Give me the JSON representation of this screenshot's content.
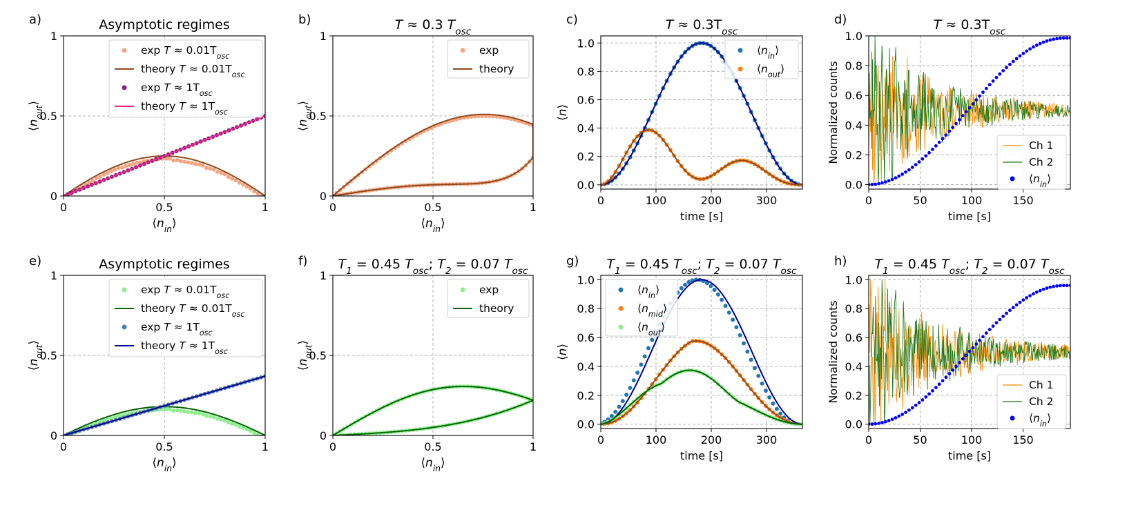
{
  "chart_data": [
    {
      "id": "a",
      "letter": "a)",
      "type": "scatter",
      "title": "Asymptotic regimes",
      "xlabel": "⟨n_in⟩",
      "ylabel": "⟨n_out⟩",
      "xlim": [
        0,
        1
      ],
      "ylim": [
        0,
        1
      ],
      "xticks": [
        0,
        0.5,
        1
      ],
      "xtick_labels": [
        "0",
        "0.5",
        "1"
      ],
      "yticks": [
        0,
        0.5,
        1
      ],
      "ytick_labels": [
        "0",
        "0.5",
        "1"
      ],
      "grid": true,
      "legend_position": "top-right",
      "series": [
        {
          "name": "exp T ≈ 0.01T_osc",
          "kind": "dots",
          "color": "#f4a582",
          "gen": "hump-exp",
          "peak": 0.25
        },
        {
          "name": "theory T ≈ 0.01T_osc",
          "kind": "line",
          "color": "#8c4a1e",
          "gen": "hump",
          "peak": 0.25
        },
        {
          "name": "exp T ≈ 1T_osc",
          "kind": "dots",
          "color": "#8e1e7a",
          "gen": "linear",
          "slope": 0.5
        },
        {
          "name": "theory T ≈ 1T_osc",
          "kind": "line",
          "color": "#e7298a",
          "gen": "linear",
          "slope": 0.5
        }
      ]
    },
    {
      "id": "b",
      "letter": "b)",
      "type": "scatter",
      "title": "T ≈ 0.3 T_osc",
      "xlabel": "⟨n_in⟩",
      "ylabel": "⟨n_out⟩",
      "xlim": [
        0,
        1
      ],
      "ylim": [
        0,
        1
      ],
      "xticks": [
        0,
        0.5,
        1
      ],
      "xtick_labels": [
        "0",
        "0.5",
        "1"
      ],
      "yticks": [
        0,
        0.5,
        1
      ],
      "ytick_labels": [
        "0",
        "0.5",
        "1"
      ],
      "grid": true,
      "legend_position": "top-right",
      "series": [
        {
          "name": "exp",
          "kind": "dots",
          "color": "#f4a582",
          "gen": "loop",
          "upper": 0.5,
          "lower": 0.07
        },
        {
          "name": "theory",
          "kind": "line",
          "color": "#8c4a1e",
          "gen": "loop",
          "upper": 0.51,
          "lower": 0.07
        }
      ]
    },
    {
      "id": "c",
      "letter": "c)",
      "type": "line",
      "title": "T ≈ 0.3T_osc",
      "xlabel": "time [s]",
      "ylabel": "⟨n⟩",
      "xlim": [
        0,
        365
      ],
      "ylim": [
        -0.03,
        1.05
      ],
      "xticks": [
        0,
        100,
        200,
        300
      ],
      "xtick_labels": [
        "0",
        "100",
        "200",
        "300"
      ],
      "yticks": [
        0,
        0.2,
        0.4,
        0.6,
        0.8,
        1.0
      ],
      "ytick_labels": [
        "0.0",
        "0.2",
        "0.4",
        "0.6",
        "0.8",
        "1.0"
      ],
      "grid": true,
      "legend_position": "top-right",
      "series": [
        {
          "name": "⟨n_in⟩",
          "kind": "dots",
          "color": "#1f77b4",
          "gen": "nin",
          "T": 365
        },
        {
          "name": "⟨n_out⟩",
          "kind": "dots",
          "color": "#ff7f0e",
          "gen": "nout1",
          "T": 365
        },
        {
          "name": "",
          "kind": "line",
          "color": "#00008b",
          "gen": "nin",
          "T": 365
        },
        {
          "name": "",
          "kind": "line",
          "color": "#8c4a1e",
          "gen": "nout1",
          "T": 365
        }
      ]
    },
    {
      "id": "d",
      "letter": "d)",
      "type": "line",
      "title": "T ≈ 0.3T_osc",
      "xlabel": "time [s]",
      "ylabel": "Normalized counts",
      "xlim": [
        0,
        196
      ],
      "ylim": [
        -0.03,
        1.0
      ],
      "xticks": [
        0,
        50,
        100,
        150
      ],
      "xtick_labels": [
        "0",
        "50",
        "100",
        "150"
      ],
      "yticks": [
        0,
        0.2,
        0.4,
        0.6,
        0.8,
        1.0
      ],
      "ytick_labels": [
        "0.0",
        "0.2",
        "0.4",
        "0.6",
        "0.8",
        "1.0"
      ],
      "grid": true,
      "legend_position": "bottom-right",
      "series": [
        {
          "name": "Ch 1",
          "kind": "noise",
          "color": "#ff8c00",
          "seed": 11,
          "decay": 70,
          "amp": 0.45
        },
        {
          "name": "Ch 2",
          "kind": "noise",
          "color": "#1a7a1a",
          "seed": 29,
          "decay": 70,
          "amp": 0.45,
          "invert": true
        },
        {
          "name": "⟨n_in⟩",
          "kind": "bluedots",
          "color": "#0000ff",
          "gen": "ramp",
          "T": 196
        }
      ]
    },
    {
      "id": "e",
      "letter": "e)",
      "type": "scatter",
      "title": "Asymptotic regimes",
      "xlabel": "⟨n_in⟩",
      "ylabel": "⟨n_out⟩",
      "xlim": [
        0,
        1
      ],
      "ylim": [
        0,
        1
      ],
      "xticks": [
        0,
        0.5,
        1
      ],
      "xtick_labels": [
        "0",
        "0.5",
        "1"
      ],
      "yticks": [
        0,
        0.5,
        1
      ],
      "ytick_labels": [
        "0",
        "0.5",
        "1"
      ],
      "grid": true,
      "legend_position": "top-right",
      "series": [
        {
          "name": "exp T ≈ 0.01T_osc",
          "kind": "dots",
          "color": "#90ee90",
          "gen": "hump-exp",
          "peak": 0.18
        },
        {
          "name": "theory T ≈ 0.01T_osc",
          "kind": "line",
          "color": "#006400",
          "gen": "hump",
          "peak": 0.18
        },
        {
          "name": "exp T ≈ 1T_osc",
          "kind": "dots",
          "color": "#4f7fb5",
          "gen": "linear",
          "slope": 0.37
        },
        {
          "name": "theory T ≈ 1T_osc",
          "kind": "line",
          "color": "#00008b",
          "gen": "linear",
          "slope": 0.37
        }
      ]
    },
    {
      "id": "f",
      "letter": "f)",
      "type": "scatter",
      "title": "T_1 = 0.45 T_osc;  T_2 = 0.07 T_osc",
      "xlabel": "⟨n_in⟩",
      "ylabel": "⟨n_out⟩",
      "xlim": [
        0,
        1
      ],
      "ylim": [
        0,
        1
      ],
      "xticks": [
        0,
        0.5,
        1
      ],
      "xtick_labels": [
        "0",
        "0.5",
        "1"
      ],
      "yticks": [
        0,
        0.5,
        1
      ],
      "ytick_labels": [
        "0",
        "0.5",
        "1"
      ],
      "grid": true,
      "legend_position": "top-right",
      "series": [
        {
          "name": "exp",
          "kind": "dots",
          "color": "#90ee90",
          "gen": "loop2",
          "upper": 0.29,
          "lower": 0.22
        },
        {
          "name": "theory",
          "kind": "line",
          "color": "#006400",
          "gen": "loop2",
          "upper": 0.29,
          "lower": 0.22
        }
      ]
    },
    {
      "id": "g",
      "letter": "g)",
      "type": "line",
      "title": "T_1 = 0.45 T_osc;  T_2 = 0.07 T_osc",
      "xlabel": "time [s]",
      "ylabel": "⟨n⟩",
      "xlim": [
        0,
        365
      ],
      "ylim": [
        -0.03,
        1.03
      ],
      "xticks": [
        0,
        100,
        200,
        300
      ],
      "xtick_labels": [
        "0",
        "100",
        "200",
        "300"
      ],
      "yticks": [
        0,
        0.2,
        0.4,
        0.6,
        0.8,
        1.0
      ],
      "ytick_labels": [
        "0.0",
        "0.2",
        "0.4",
        "0.6",
        "0.8",
        "1.0"
      ],
      "grid": true,
      "legend_position": "top-left",
      "series": [
        {
          "name": "⟨n_in⟩",
          "kind": "dots",
          "color": "#1f77b4",
          "gen": "nin",
          "T": 365,
          "shift": -8
        },
        {
          "name": "⟨n_mid⟩",
          "kind": "dots",
          "color": "#ff7f0e",
          "gen": "nmid",
          "T": 365
        },
        {
          "name": "⟨n_out⟩",
          "kind": "dots",
          "color": "#90ee90",
          "gen": "nout2",
          "T": 365
        },
        {
          "name": "",
          "kind": "line",
          "color": "#00008b",
          "gen": "nin",
          "T": 365
        },
        {
          "name": "",
          "kind": "line",
          "color": "#8c4a1e",
          "gen": "nmid",
          "T": 365
        },
        {
          "name": "",
          "kind": "line",
          "color": "#006400",
          "gen": "nout2",
          "T": 365
        }
      ]
    },
    {
      "id": "h",
      "letter": "h)",
      "type": "line",
      "title": "T_1 = 0.45 T_osc;  T_2 = 0.07 T_osc",
      "xlabel": "time [s]",
      "ylabel": "Normalized counts",
      "xlim": [
        0,
        196
      ],
      "ylim": [
        -0.03,
        1.03
      ],
      "xticks": [
        0,
        50,
        100,
        150
      ],
      "xtick_labels": [
        "0",
        "50",
        "100",
        "150"
      ],
      "yticks": [
        0,
        0.2,
        0.4,
        0.6,
        0.8,
        1.0
      ],
      "ytick_labels": [
        "0.0",
        "0.2",
        "0.4",
        "0.6",
        "0.8",
        "1.0"
      ],
      "grid": true,
      "legend_position": "bottom-right",
      "series": [
        {
          "name": "Ch 1",
          "kind": "noise",
          "color": "#ff8c00",
          "seed": 5,
          "decay": 80,
          "amp": 0.42
        },
        {
          "name": "Ch 2",
          "kind": "noise",
          "color": "#1a7a1a",
          "seed": 47,
          "decay": 80,
          "amp": 0.42,
          "invert": true
        },
        {
          "name": "⟨n_in⟩",
          "kind": "bluedots",
          "color": "#0000ff",
          "gen": "ramp",
          "T": 196,
          "top": 0.96
        }
      ]
    }
  ]
}
